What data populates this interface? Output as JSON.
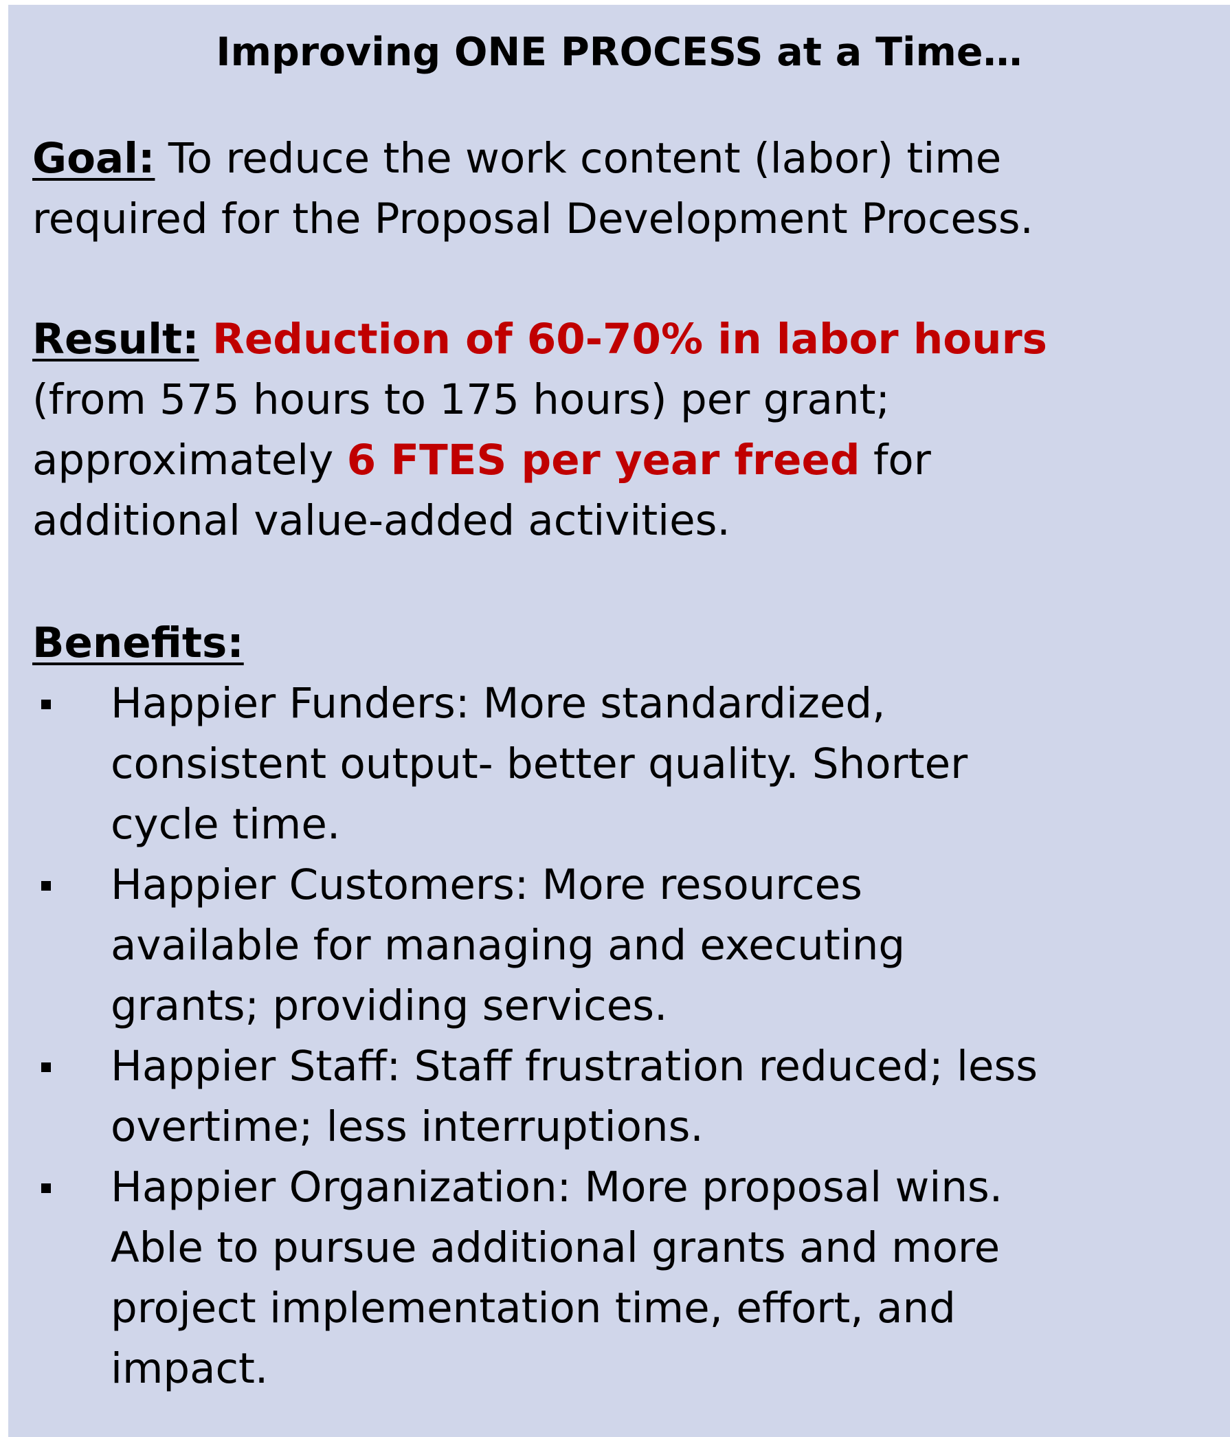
{
  "title": "Improving ONE PROCESS at a Time…",
  "goal": {
    "label": "Goal:",
    "line1": " To reduce the work content (labor) time",
    "line2": "required for the Proposal Development Process."
  },
  "result": {
    "label": "Result:",
    "highlight1": "Reduction of 60-70% in labor hours",
    "line2": "(from 575 hours to 175 hours) per grant;",
    "line3_pre": "approximately ",
    "highlight2": "6 FTES per year freed",
    "line3_post": " for",
    "line4": "additional value-added activities."
  },
  "benefits": {
    "label": "Benefits:",
    "items": [
      {
        "lines": [
          "Happier Funders: More standardized,",
          "consistent output- better quality. Shorter",
          "cycle time."
        ]
      },
      {
        "lines": [
          "Happier Customers: More resources",
          "available for managing and executing",
          "grants; providing services."
        ]
      },
      {
        "lines": [
          "Happier Staff: Staff frustration reduced; less",
          "overtime; less interruptions."
        ]
      },
      {
        "lines": [
          "Happier Organization: More proposal wins.",
          "Able to pursue additional grants and more",
          "project implementation time, effort, and",
          "impact."
        ]
      }
    ]
  },
  "colors": {
    "background": "#d0d6ea",
    "highlight": "#c00000"
  }
}
